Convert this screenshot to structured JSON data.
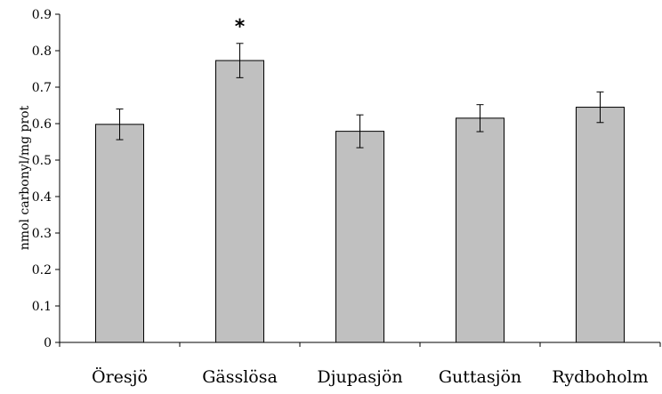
{
  "chart_data": {
    "type": "bar",
    "title": "",
    "xlabel": "",
    "ylabel": "nmol carbonyl/mg prot",
    "categories": [
      "Öresjö",
      "Gässlösa",
      "Djupasjön",
      "Guttasjön",
      "Rydboholm"
    ],
    "values": [
      0.598,
      0.773,
      0.579,
      0.615,
      0.645
    ],
    "error": [
      0.042,
      0.047,
      0.045,
      0.037,
      0.042
    ],
    "ylim": [
      0,
      0.9
    ],
    "yticks": [
      "0",
      "0.1",
      "0.2",
      "0.3",
      "0.4",
      "0.5",
      "0.6",
      "0.7",
      "0.8",
      "0.9"
    ],
    "annotations": [
      {
        "category": "Gässlösa",
        "text": "*"
      }
    ],
    "grid": false,
    "legend": "none",
    "bar_color": "#c0c0c0",
    "bar_edge_color": "#000000"
  }
}
